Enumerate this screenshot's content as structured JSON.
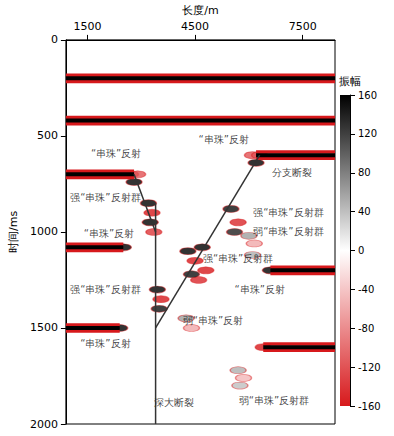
{
  "chart_data": {
    "type": "seismic",
    "xlabel": "长度/m",
    "ylabel": "时间/ms",
    "xlim": [
      900,
      8400
    ],
    "xticks": [
      1500,
      4500,
      7500
    ],
    "ylim": [
      0,
      2000
    ],
    "yticks": [
      0,
      500,
      1000,
      1500,
      2000
    ],
    "grid": false,
    "colorbar": {
      "label": "振幅",
      "lim": [
        -160,
        160
      ],
      "ticks": [
        -160,
        -120,
        -80,
        -40,
        0,
        40,
        80,
        120,
        160
      ]
    },
    "reflectors": [
      {
        "x": [
          900,
          8400
        ],
        "t": 200,
        "amplitude": 160
      },
      {
        "x": [
          900,
          8400
        ],
        "t": 420,
        "amplitude": 160
      },
      {
        "x": [
          900,
          2800
        ],
        "t": 700,
        "amplitude": 160
      },
      {
        "x": [
          6200,
          8400
        ],
        "t": 600,
        "amplitude": 160
      },
      {
        "x": [
          900,
          2500
        ],
        "t": 1080,
        "amplitude": 160
      },
      {
        "x": [
          6600,
          8400
        ],
        "t": 1200,
        "amplitude": 160
      },
      {
        "x": [
          900,
          2400
        ],
        "t": 1500,
        "amplitude": 160
      },
      {
        "x": [
          6400,
          8400
        ],
        "t": 1600,
        "amplitude": 160
      }
    ],
    "faults": [
      {
        "x": [
          3400,
          3400
        ],
        "t": [
          850,
          2000
        ]
      },
      {
        "x": [
          3400,
          6300
        ],
        "t": [
          1500,
          600
        ]
      },
      {
        "x": [
          3400,
          2800
        ],
        "t": [
          1000,
          700
        ]
      }
    ],
    "beads": [
      {
        "x": 2700,
        "t": 700,
        "amplitude": -120
      },
      {
        "x": 2800,
        "t": 740,
        "amplitude": 160
      },
      {
        "x": 2900,
        "t": 700,
        "amplitude": -120
      },
      {
        "x": 6100,
        "t": 600,
        "amplitude": -120
      },
      {
        "x": 6200,
        "t": 640,
        "amplitude": 160
      },
      {
        "x": 6300,
        "t": 600,
        "amplitude": -120
      },
      {
        "x": 3200,
        "t": 850,
        "amplitude": 160
      },
      {
        "x": 3300,
        "t": 900,
        "amplitude": -160
      },
      {
        "x": 3250,
        "t": 950,
        "amplitude": 160
      },
      {
        "x": 3350,
        "t": 1000,
        "amplitude": -140
      },
      {
        "x": 4300,
        "t": 1100,
        "amplitude": 160
      },
      {
        "x": 4500,
        "t": 1150,
        "amplitude": -160
      },
      {
        "x": 4700,
        "t": 1080,
        "amplitude": 160
      },
      {
        "x": 4600,
        "t": 1250,
        "amplitude": -150
      },
      {
        "x": 4400,
        "t": 1220,
        "amplitude": 150
      },
      {
        "x": 4800,
        "t": 1200,
        "amplitude": -160
      },
      {
        "x": 5500,
        "t": 880,
        "amplitude": 150
      },
      {
        "x": 5700,
        "t": 950,
        "amplitude": -150
      },
      {
        "x": 5600,
        "t": 1000,
        "amplitude": 140
      },
      {
        "x": 6000,
        "t": 1020,
        "amplitude": 60
      },
      {
        "x": 6150,
        "t": 1060,
        "amplitude": -60
      },
      {
        "x": 6100,
        "t": 1120,
        "amplitude": 50
      },
      {
        "x": 3450,
        "t": 1300,
        "amplitude": 160
      },
      {
        "x": 3550,
        "t": 1350,
        "amplitude": -160
      },
      {
        "x": 3500,
        "t": 1400,
        "amplitude": 150
      },
      {
        "x": 4250,
        "t": 1450,
        "amplitude": 60
      },
      {
        "x": 4400,
        "t": 1500,
        "amplitude": -60
      },
      {
        "x": 5700,
        "t": 1720,
        "amplitude": 50
      },
      {
        "x": 5850,
        "t": 1760,
        "amplitude": -50
      },
      {
        "x": 5750,
        "t": 1800,
        "amplitude": 40
      },
      {
        "x": 2500,
        "t": 1080,
        "amplitude": 160
      },
      {
        "x": 6600,
        "t": 1200,
        "amplitude": 160
      },
      {
        "x": 2400,
        "t": 1500,
        "amplitude": 160
      },
      {
        "x": 6400,
        "t": 1600,
        "amplitude": -160
      }
    ],
    "annotations": [
      {
        "text": "“串珠”反射",
        "x": 5300,
        "t": 520
      },
      {
        "text": "“串珠”反射",
        "x": 2300,
        "t": 590
      },
      {
        "text": "分支断裂",
        "x": 7200,
        "t": 690
      },
      {
        "text": "强“串珠”反射群",
        "x": 2000,
        "t": 820
      },
      {
        "text": "强“串珠”反射群",
        "x": 7100,
        "t": 900
      },
      {
        "text": "弱“串珠”反射群",
        "x": 7100,
        "t": 1000
      },
      {
        "text": "“串珠”反射",
        "x": 2100,
        "t": 1010
      },
      {
        "text": "强“串珠”反射群",
        "x": 5700,
        "t": 1140
      },
      {
        "text": "强“串珠”反射群",
        "x": 2000,
        "t": 1300
      },
      {
        "text": "“串珠”反射",
        "x": 6300,
        "t": 1300
      },
      {
        "text": "弱“串珠”反射",
        "x": 5000,
        "t": 1460
      },
      {
        "text": "“串珠”反射",
        "x": 2000,
        "t": 1580
      },
      {
        "text": "深大断裂",
        "x": 3900,
        "t": 1890
      },
      {
        "text": "弱“串珠”反射群",
        "x": 6700,
        "t": 1880
      }
    ]
  }
}
